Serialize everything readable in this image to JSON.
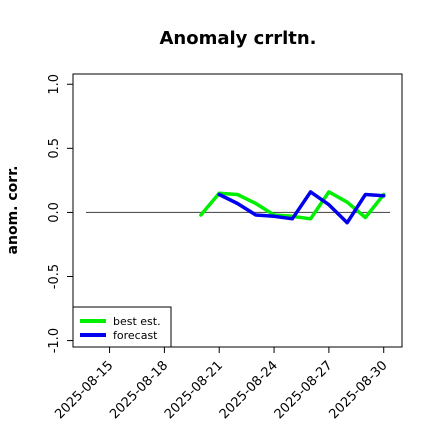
{
  "chart_data": {
    "type": "line",
    "title": "Anomaly crrltn.",
    "xlabel": "",
    "ylabel": "anom. corr.",
    "ylim": [
      -1.05,
      1.08
    ],
    "xlim": [
      "2025-08-13",
      "2025-08-31"
    ],
    "y_ticks": [
      "-1.0",
      "-0.5",
      "0.0",
      "0.5",
      "1.0"
    ],
    "x_ticks": [
      {
        "date": "2025-08-15",
        "label": "2025-08-15"
      },
      {
        "date": "2025-08-18",
        "label": "2025-08-18"
      },
      {
        "date": "2025-08-21",
        "label": "2025-08-21",
        "color": "#228B22"
      },
      {
        "date": "2025-08-24",
        "label": "2025-08-24"
      },
      {
        "date": "2025-08-27",
        "label": "2025-08-27"
      },
      {
        "date": "2025-08-30",
        "label": "2025-08-30"
      }
    ],
    "reference_line": 0,
    "legend_position": "bottom-left",
    "series": [
      {
        "name": "best est.",
        "color": "#00ee00",
        "x": [
          "2025-08-20",
          "2025-08-21",
          "2025-08-22",
          "2025-08-23",
          "2025-08-24",
          "2025-08-25",
          "2025-08-26",
          "2025-08-27",
          "2025-08-28",
          "2025-08-29",
          "2025-08-30"
        ],
        "y": [
          -0.02,
          0.15,
          0.14,
          0.07,
          -0.02,
          -0.03,
          -0.05,
          0.16,
          0.08,
          -0.04,
          0.14
        ]
      },
      {
        "name": "forecast",
        "color": "#0000ee",
        "x": [
          "2025-08-21",
          "2025-08-22",
          "2025-08-23",
          "2025-08-24",
          "2025-08-25",
          "2025-08-26",
          "2025-08-27",
          "2025-08-28",
          "2025-08-29",
          "2025-08-30"
        ],
        "y": [
          0.14,
          0.07,
          -0.02,
          -0.03,
          -0.05,
          0.16,
          0.06,
          -0.08,
          0.14,
          0.13
        ]
      }
    ]
  }
}
